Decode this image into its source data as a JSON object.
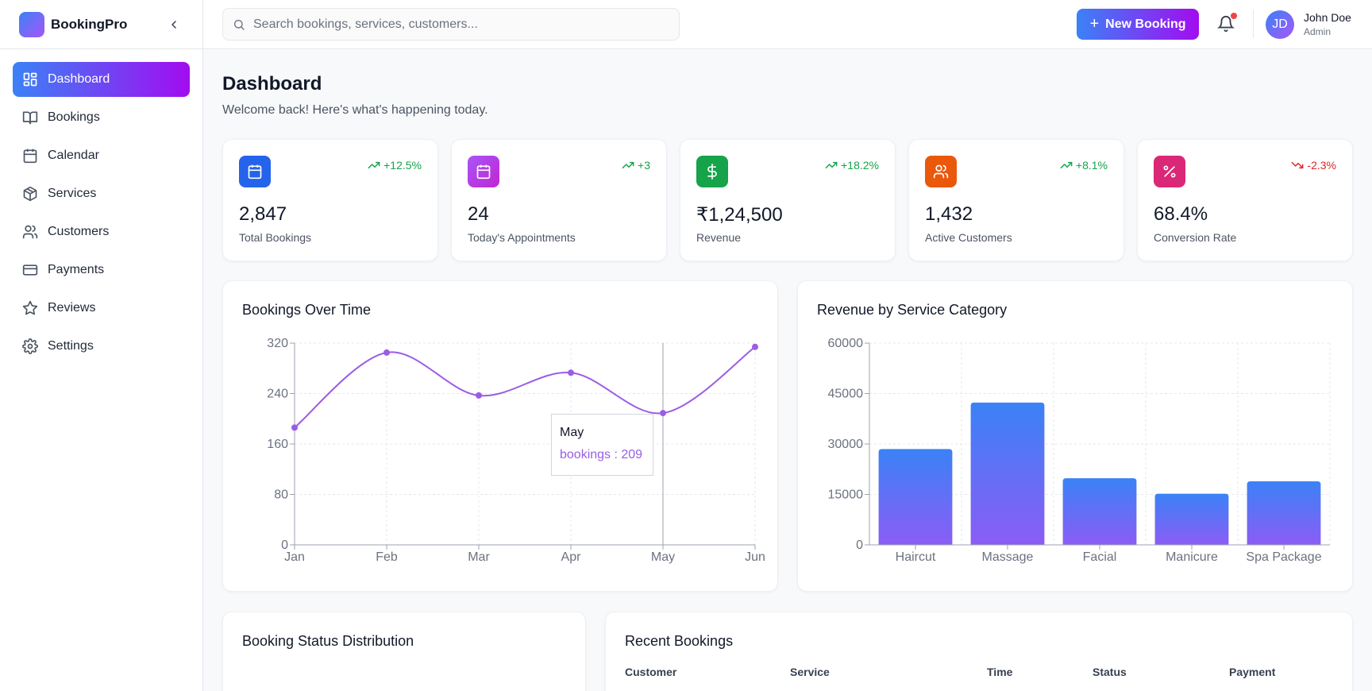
{
  "app": {
    "name": "BookingPro"
  },
  "sidebar": {
    "items": [
      {
        "label": "Dashboard",
        "icon": "dashboard-icon",
        "active": true
      },
      {
        "label": "Bookings",
        "icon": "book-icon"
      },
      {
        "label": "Calendar",
        "icon": "calendar-icon"
      },
      {
        "label": "Services",
        "icon": "package-icon"
      },
      {
        "label": "Customers",
        "icon": "users-icon"
      },
      {
        "label": "Payments",
        "icon": "credit-card-icon"
      },
      {
        "label": "Reviews",
        "icon": "star-icon"
      },
      {
        "label": "Settings",
        "icon": "gear-icon"
      }
    ]
  },
  "topbar": {
    "search_placeholder": "Search bookings, services, customers...",
    "new_booking_label": "New Booking",
    "user": {
      "initials": "JD",
      "name": "John Doe",
      "role": "Admin"
    }
  },
  "header": {
    "title": "Dashboard",
    "subtitle": "Welcome back! Here's what's happening today."
  },
  "stats": [
    {
      "value": "2,847",
      "label": "Total Bookings",
      "trend": "+12.5%",
      "direction": "up",
      "icon": "calendar-icon",
      "color": "#2563eb"
    },
    {
      "value": "24",
      "label": "Today's Appointments",
      "trend": "+3",
      "direction": "up",
      "icon": "calendar-icon",
      "color": "#a21caf"
    },
    {
      "value": "₹1,24,500",
      "label": "Revenue",
      "trend": "+18.2%",
      "direction": "up",
      "icon": "dollar-icon",
      "color": "#16a34a"
    },
    {
      "value": "1,432",
      "label": "Active Customers",
      "trend": "+8.1%",
      "direction": "up",
      "icon": "users-icon",
      "color": "#ea580c"
    },
    {
      "value": "68.4%",
      "label": "Conversion Rate",
      "trend": "-2.3%",
      "direction": "down",
      "icon": "percent-icon",
      "color": "#db2777"
    }
  ],
  "line_panel": {
    "title": "Bookings Over Time"
  },
  "bar_panel": {
    "title": "Revenue by Service Category"
  },
  "status_panel": {
    "title": "Booking Status Distribution"
  },
  "recent_panel": {
    "title": "Recent Bookings",
    "columns": [
      "Customer",
      "Service",
      "Time",
      "Status",
      "Payment"
    ]
  },
  "tooltip": {
    "label": "May",
    "text": "bookings : 209"
  },
  "chart_data": [
    {
      "type": "line",
      "title": "Bookings Over Time",
      "categories": [
        "Jan",
        "Feb",
        "Mar",
        "Apr",
        "May",
        "Jun"
      ],
      "series": [
        {
          "name": "bookings",
          "values": [
            186,
            305,
            237,
            273,
            209,
            314
          ]
        }
      ],
      "ylim": [
        0,
        320
      ],
      "yticks": [
        0,
        80,
        160,
        240,
        320
      ],
      "grid": true,
      "color": "#9b5de5"
    },
    {
      "type": "bar",
      "title": "Revenue by Service Category",
      "categories": [
        "Haircut",
        "Massage",
        "Facial",
        "Manicure",
        "Spa Package"
      ],
      "values": [
        28500,
        42300,
        19800,
        15200,
        18900
      ],
      "ylim": [
        0,
        60000
      ],
      "yticks": [
        0,
        15000,
        30000,
        45000,
        60000
      ],
      "grid": true,
      "colors": {
        "top": "#3b82f6",
        "bottom": "#8b5cf6"
      }
    }
  ]
}
